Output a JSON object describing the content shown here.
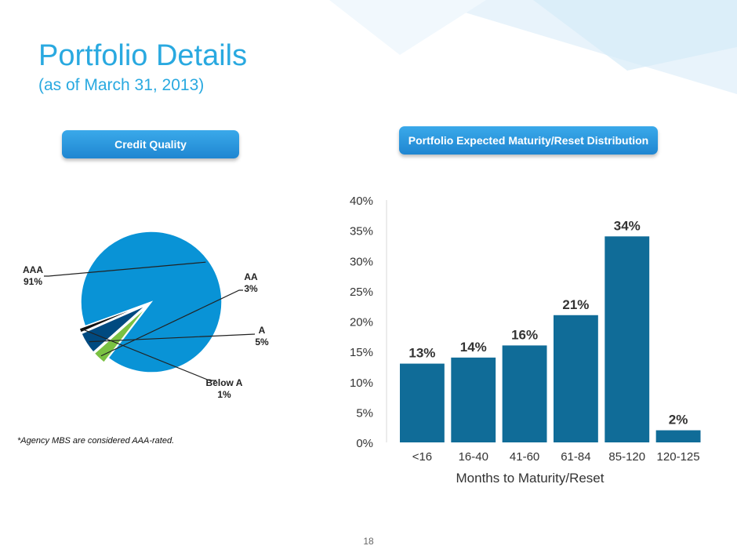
{
  "header": {
    "title": "Portfolio Details",
    "subtitle": "(as of March 31, 2013)"
  },
  "credit_quality": {
    "button_label": "Credit Quality",
    "footnote": "*Agency MBS are considered AAA-rated."
  },
  "maturity": {
    "button_label": "Portfolio Expected Maturity/Reset Distribution"
  },
  "page_number": "18",
  "colors": {
    "accent": "#29a9e0",
    "bar": "#106c98",
    "pie_aaa": "#0993d6",
    "pie_aa": "#7ac142",
    "pie_a": "#004a80",
    "pie_below_a": "#111111"
  },
  "chart_data": [
    {
      "type": "pie",
      "slices": [
        {
          "label": "AAA",
          "value_label": "91%",
          "value": 91,
          "color": "#0993d6"
        },
        {
          "label": "AA",
          "value_label": "3%",
          "value": 3,
          "color": "#7ac142"
        },
        {
          "label": "A",
          "value_label": "5%",
          "value": 5,
          "color": "#004a80"
        },
        {
          "label": "Below A",
          "value_label": "1%",
          "value": 1,
          "color": "#111111"
        }
      ]
    },
    {
      "type": "bar",
      "categories": [
        "<16",
        "16-40",
        "41-60",
        "61-84",
        "85-120",
        "120-125"
      ],
      "values": [
        13,
        14,
        16,
        21,
        34,
        2
      ],
      "data_labels": [
        "13%",
        "14%",
        "16%",
        "21%",
        "34%",
        "2%"
      ],
      "xlabel": "Months to Maturity/Reset",
      "ylabel": "",
      "ylim": [
        0,
        40
      ],
      "yticks": [
        "0%",
        "5%",
        "10%",
        "15%",
        "20%",
        "25%",
        "30%",
        "35%",
        "40%"
      ],
      "grid": false
    }
  ]
}
